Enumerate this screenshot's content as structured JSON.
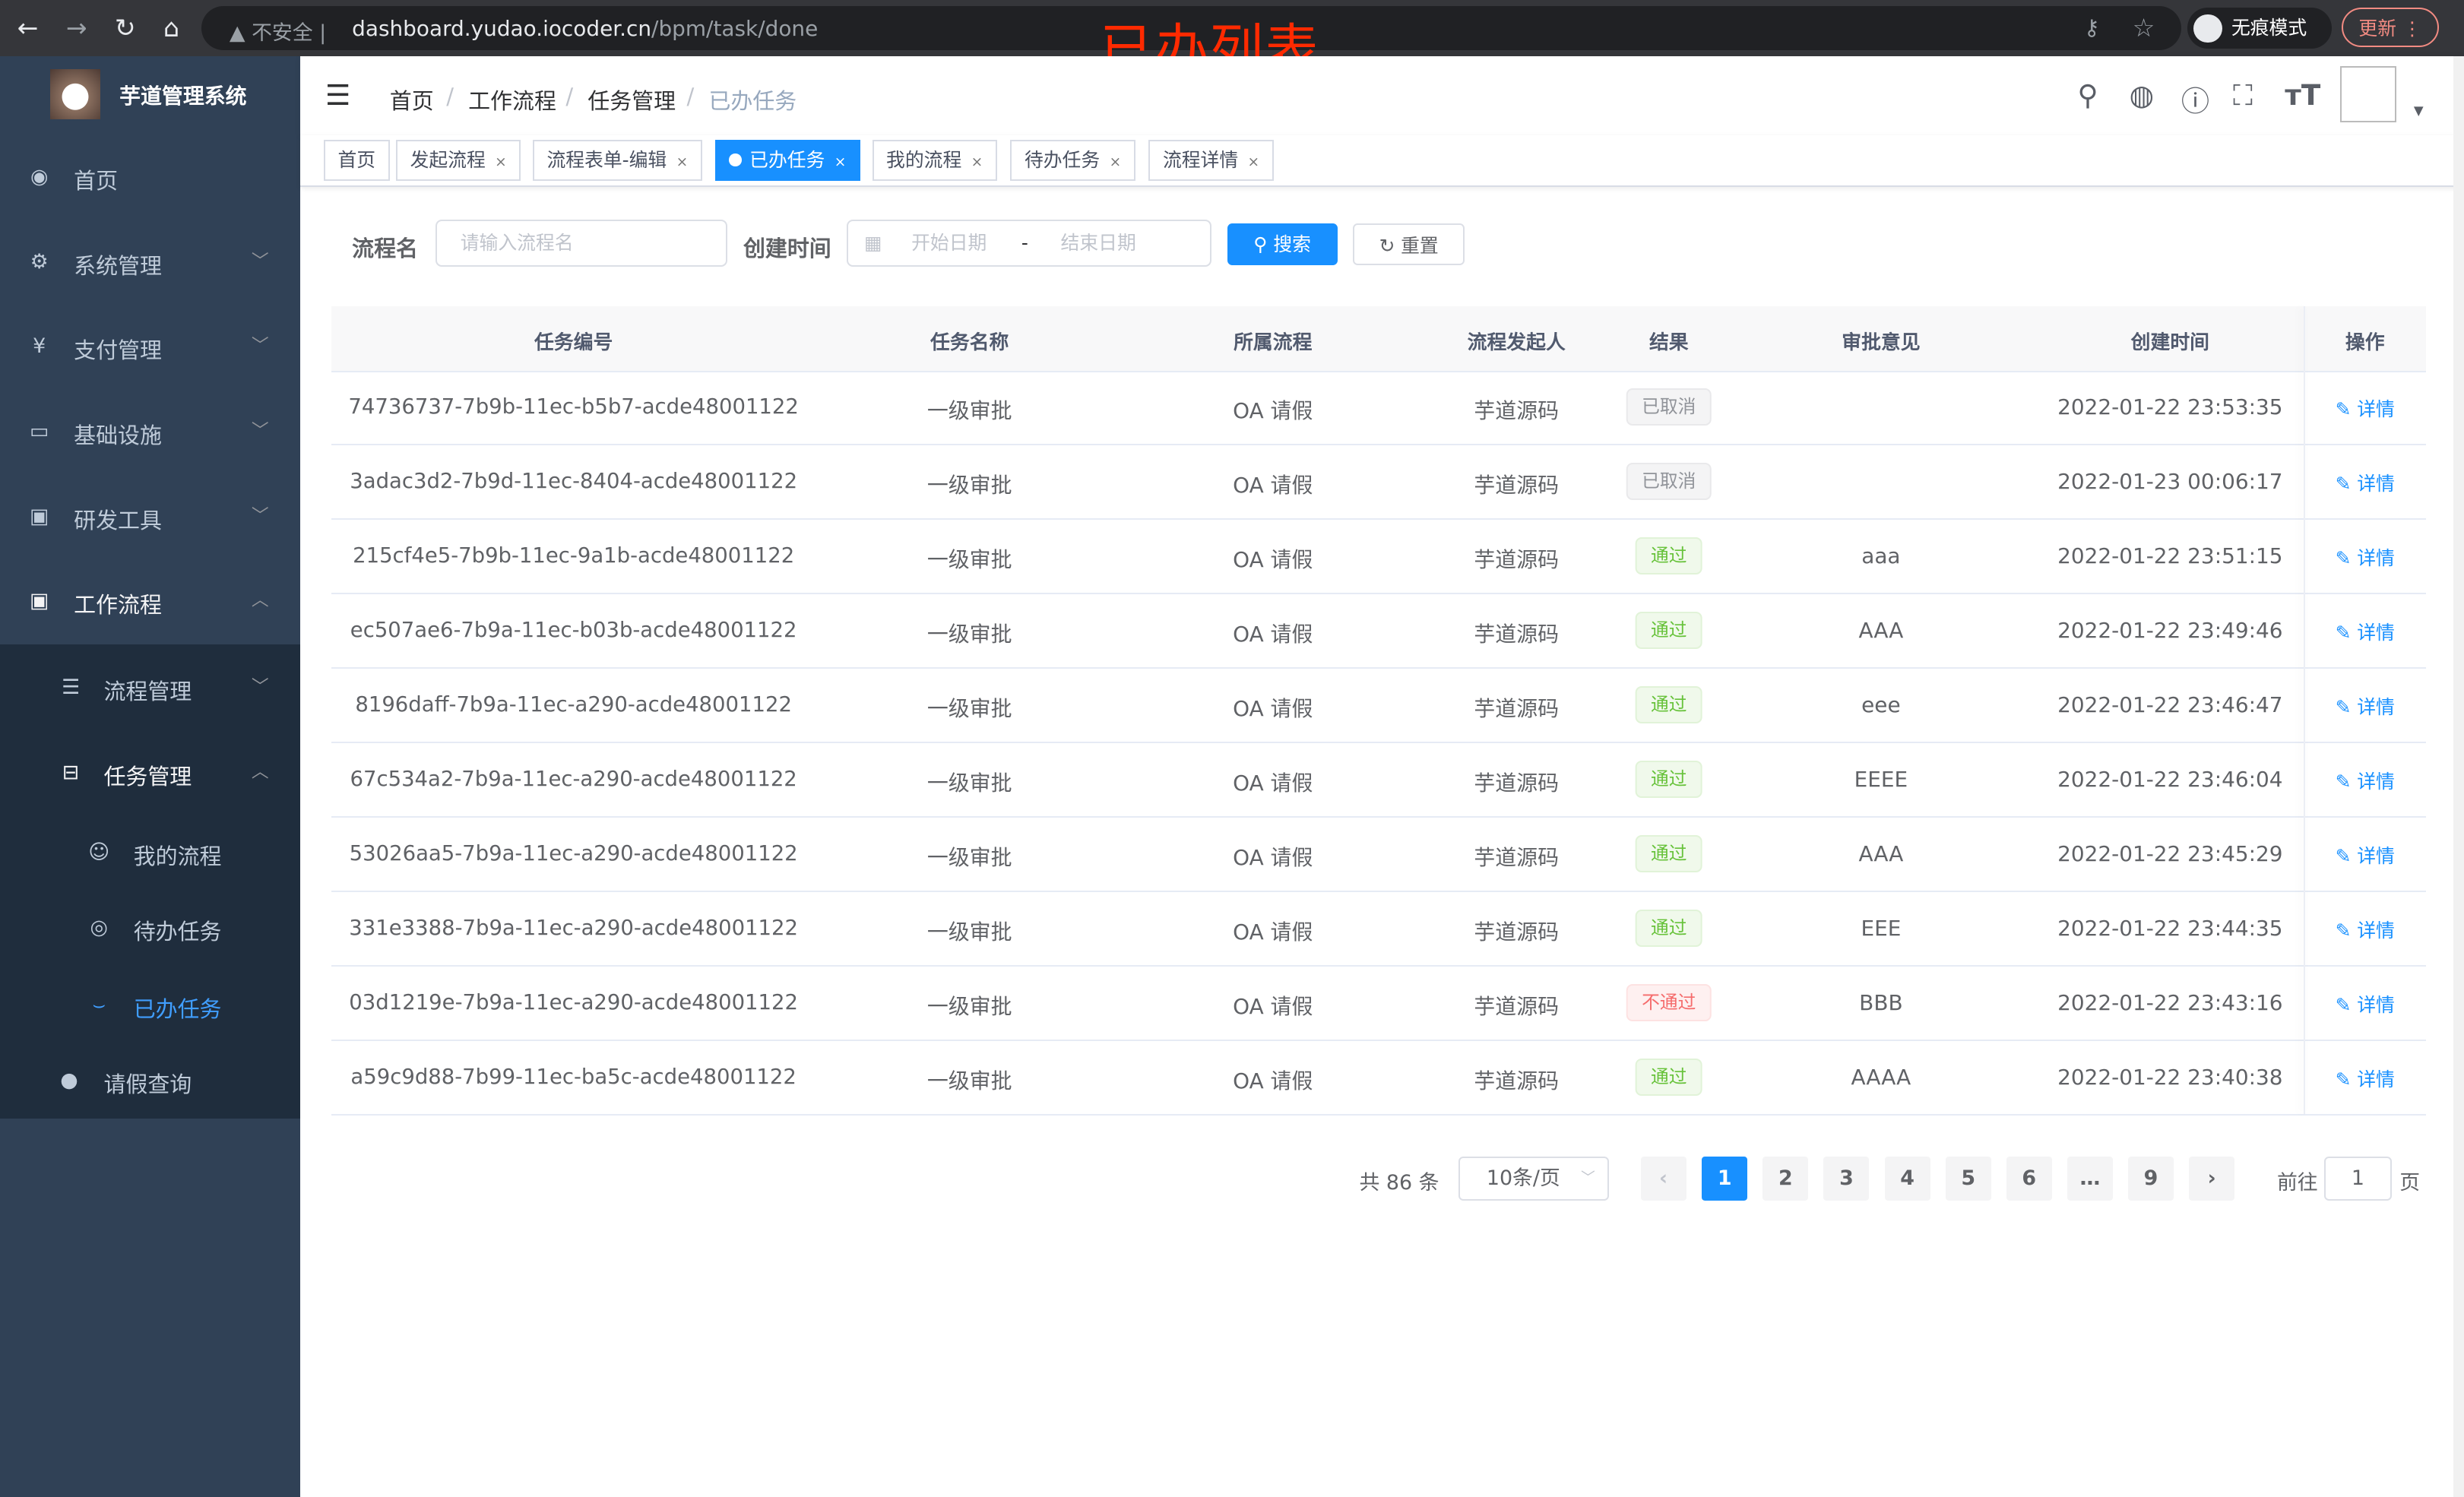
{
  "browser": {
    "back_icon": "arrow-left-icon",
    "forward_icon": "arrow-right-icon",
    "reload_icon": "reload-icon",
    "home_icon": "home-icon",
    "security_label": "不安全",
    "url_host": "dashboard.yudao.iocoder.cn",
    "url_path": "/bpm/task/done",
    "incognito_label": "无痕模式",
    "update_label": "更新"
  },
  "annotation": "已办列表",
  "sidebar": {
    "title": "芋道管理系统",
    "items": [
      {
        "label": "首页",
        "icon": "dashboard-icon"
      },
      {
        "label": "系统管理",
        "icon": "gear-icon"
      },
      {
        "label": "支付管理",
        "icon": "yen-icon"
      },
      {
        "label": "基础设施",
        "icon": "monitor-icon"
      },
      {
        "label": "研发工具",
        "icon": "toolbox-icon"
      },
      {
        "label": "工作流程",
        "icon": "toolbox-icon"
      },
      {
        "label": "流程管理",
        "icon": "list-icon"
      },
      {
        "label": "任务管理",
        "icon": "tree-icon"
      },
      {
        "label": "我的流程",
        "icon": "chat-icon"
      },
      {
        "label": "待办任务",
        "icon": "eye-icon"
      },
      {
        "label": "已办任务",
        "icon": "done-icon"
      },
      {
        "label": "请假查询",
        "icon": "user-icon"
      }
    ]
  },
  "breadcrumb": [
    "首页",
    "工作流程",
    "任务管理",
    "已办任务"
  ],
  "tags": [
    "首页",
    "发起流程",
    "流程表单-编辑",
    "已办任务",
    "我的流程",
    "待办任务",
    "流程详情"
  ],
  "active_tag": "已办任务",
  "search": {
    "name_label": "流程名",
    "name_placeholder": "请输入流程名",
    "time_label": "创建时间",
    "start_placeholder": "开始日期",
    "range_sep": "-",
    "end_placeholder": "结束日期",
    "search_button": "搜索",
    "reset_button": "重置"
  },
  "table": {
    "headers": [
      "任务编号",
      "任务名称",
      "所属流程",
      "流程发起人",
      "结果",
      "审批意见",
      "创建时间",
      "操作"
    ],
    "detail_label": "详情",
    "rows": [
      {
        "id": "74736737-7b9b-11ec-b5b7-acde48001122",
        "name": "一级审批",
        "process": "OA 请假",
        "starter": "芋道源码",
        "result": "已取消",
        "status": "info",
        "comment": "",
        "time": "2022-01-22 23:53:35"
      },
      {
        "id": "3adac3d2-7b9d-11ec-8404-acde48001122",
        "name": "一级审批",
        "process": "OA 请假",
        "starter": "芋道源码",
        "result": "已取消",
        "status": "info",
        "comment": "",
        "time": "2022-01-23 00:06:17"
      },
      {
        "id": "215cf4e5-7b9b-11ec-9a1b-acde48001122",
        "name": "一级审批",
        "process": "OA 请假",
        "starter": "芋道源码",
        "result": "通过",
        "status": "success",
        "comment": "aaa",
        "time": "2022-01-22 23:51:15"
      },
      {
        "id": "ec507ae6-7b9a-11ec-b03b-acde48001122",
        "name": "一级审批",
        "process": "OA 请假",
        "starter": "芋道源码",
        "result": "通过",
        "status": "success",
        "comment": "AAA",
        "time": "2022-01-22 23:49:46"
      },
      {
        "id": "8196daff-7b9a-11ec-a290-acde48001122",
        "name": "一级审批",
        "process": "OA 请假",
        "starter": "芋道源码",
        "result": "通过",
        "status": "success",
        "comment": "eee",
        "time": "2022-01-22 23:46:47"
      },
      {
        "id": "67c534a2-7b9a-11ec-a290-acde48001122",
        "name": "一级审批",
        "process": "OA 请假",
        "starter": "芋道源码",
        "result": "通过",
        "status": "success",
        "comment": "EEEE",
        "time": "2022-01-22 23:46:04"
      },
      {
        "id": "53026aa5-7b9a-11ec-a290-acde48001122",
        "name": "一级审批",
        "process": "OA 请假",
        "starter": "芋道源码",
        "result": "通过",
        "status": "success",
        "comment": "AAA",
        "time": "2022-01-22 23:45:29"
      },
      {
        "id": "331e3388-7b9a-11ec-a290-acde48001122",
        "name": "一级审批",
        "process": "OA 请假",
        "starter": "芋道源码",
        "result": "通过",
        "status": "success",
        "comment": "EEE",
        "time": "2022-01-22 23:44:35"
      },
      {
        "id": "03d1219e-7b9a-11ec-a290-acde48001122",
        "name": "一级审批",
        "process": "OA 请假",
        "starter": "芋道源码",
        "result": "不通过",
        "status": "danger",
        "comment": "BBB",
        "time": "2022-01-22 23:43:16"
      },
      {
        "id": "a59c9d88-7b99-11ec-ba5c-acde48001122",
        "name": "一级审批",
        "process": "OA 请假",
        "starter": "芋道源码",
        "result": "通过",
        "status": "success",
        "comment": "AAAA",
        "time": "2022-01-22 23:40:38"
      }
    ]
  },
  "pagination": {
    "total_label": "共 86 条",
    "page_size": "10条/页",
    "pages": [
      "1",
      "2",
      "3",
      "4",
      "5",
      "6",
      "…",
      "9"
    ],
    "current_page": "1",
    "goto_prefix": "前往",
    "goto_value": "1",
    "goto_suffix": "页"
  },
  "colors": {
    "primary": "#1890ff",
    "sidebar_bg": "#304156",
    "submenu_bg": "#1f2d3d",
    "annotation": "#ff2a00"
  }
}
